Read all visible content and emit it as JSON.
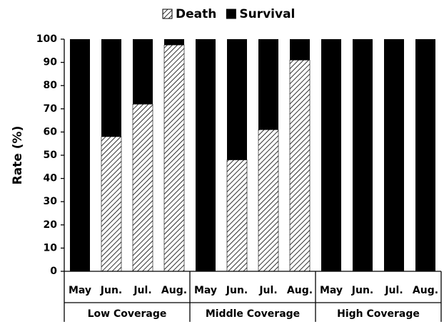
{
  "chart_data": {
    "type": "stacked_bar",
    "ylabel": "Rate (%)",
    "categories": [
      "May",
      "Jun.",
      "Jul.",
      "Aug.",
      "May",
      "Jun.",
      "Jul.",
      "Aug.",
      "May",
      "Jun.",
      "Jul.",
      "Aug."
    ],
    "groups": [
      "Low Coverage",
      "Middle Coverage",
      "High Coverage"
    ],
    "series": [
      {
        "name": "Death",
        "color": "#000000",
        "pattern": "hatch",
        "values": [
          0,
          58,
          72,
          97.5,
          0,
          48,
          61,
          91,
          0,
          0,
          0,
          0
        ]
      },
      {
        "name": "Survival",
        "color": "#000000",
        "values": [
          100,
          42,
          28,
          2.5,
          100,
          52,
          39,
          9,
          100,
          100,
          100,
          100
        ]
      }
    ],
    "ylim": [
      0,
      100
    ],
    "yticks": [
      0,
      10,
      20,
      30,
      40,
      50,
      60,
      70,
      80,
      90,
      100
    ],
    "legend": "top"
  }
}
